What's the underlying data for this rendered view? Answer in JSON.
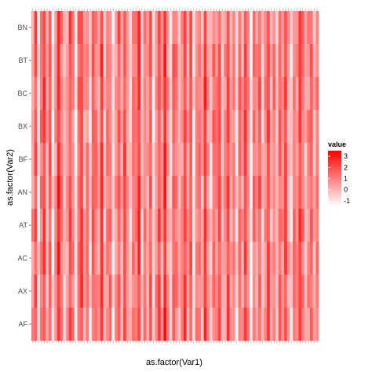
{
  "chart_data": {
    "type": "heatmap",
    "xlabel": "as.factor(Var1)",
    "ylabel": "as.factor(Var2)",
    "y_categories_top_to_bottom": [
      "BN",
      "BT",
      "BC",
      "BX",
      "BF",
      "AN",
      "AT",
      "AC",
      "AX",
      "AF"
    ],
    "x_categories": "100 unreadable numeric factor levels (tick labels overlap)",
    "x_count": 100,
    "value_range": [
      -1.5,
      3.5
    ],
    "low_color": "#ffffff",
    "high_color": "#ff0000",
    "legend": {
      "title": "value",
      "ticks": [
        3,
        2,
        1,
        0,
        -1
      ],
      "placement": "right"
    },
    "column_pattern": [
      0.6,
      1.8,
      -0.6,
      1.2,
      2.2,
      0.1,
      1.5,
      -0.9,
      0.7,
      2.6,
      1.0,
      -0.4,
      0.3,
      1.9,
      0.8,
      -1.1,
      1.4,
      2.1,
      0.2,
      0.9,
      -0.7,
      1.6,
      1.1,
      0.4,
      2.4,
      -0.2,
      0.9,
      1.3,
      -1.0,
      0.5,
      1.7,
      0.0,
      2.0,
      0.6,
      -0.5,
      1.2,
      0.8,
      2.3,
      -0.3,
      1.0,
      0.4,
      1.5,
      -0.8,
      0.9,
      1.9,
      0.2,
      2.8,
      0.6,
      -0.6,
      1.4,
      1.1,
      -0.1,
      0.7,
      2.2,
      0.3,
      1.6,
      -0.9,
      0.8,
      1.2,
      0.0,
      2.5,
      0.5,
      -0.4,
      1.3,
      0.9,
      1.8,
      -0.2,
      0.6,
      2.0,
      0.1,
      1.0,
      -0.7,
      1.5,
      0.4,
      2.1,
      0.8,
      -1.0,
      1.2,
      0.6,
      1.7,
      -0.3,
      0.9,
      2.3,
      0.2,
      1.1,
      -0.5,
      1.4,
      0.7,
      1.9,
      0.3,
      -0.8,
      1.0,
      0.5,
      2.2,
      1.3,
      -0.1,
      0.8,
      1.6,
      0.0,
      0.9
    ]
  }
}
